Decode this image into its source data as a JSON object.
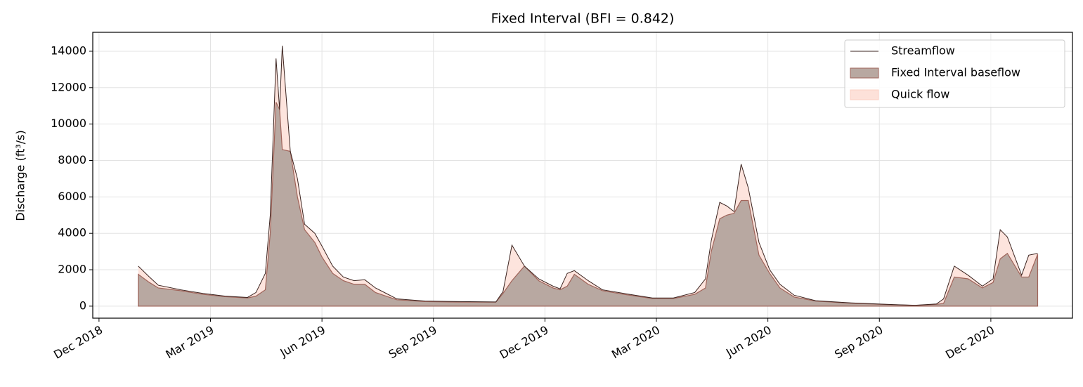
{
  "chart_data": {
    "type": "area",
    "title": "Fixed Interval (BFI = 0.842)",
    "y_label": "Discharge (ft³/s)",
    "x": [
      2019.005,
      2019.03,
      2019.05,
      2019.1,
      2019.15,
      2019.2,
      2019.25,
      2019.269,
      2019.29,
      2019.301,
      2019.314,
      2019.322,
      2019.328,
      2019.346,
      2019.362,
      2019.378,
      2019.401,
      2019.417,
      2019.441,
      2019.465,
      2019.489,
      2019.513,
      2019.537,
      2019.561,
      2019.585,
      2019.648,
      2019.728,
      2019.807,
      2019.823,
      2019.843,
      2019.871,
      2019.903,
      2019.935,
      2019.951,
      2019.967,
      2019.983,
      2020.014,
      2020.046,
      2020.094,
      2020.158,
      2020.205,
      2020.253,
      2020.277,
      2020.29,
      2020.309,
      2020.325,
      2020.341,
      2020.357,
      2020.373,
      2020.397,
      2020.421,
      2020.444,
      2020.476,
      2020.524,
      2020.604,
      2020.683,
      2020.747,
      2020.795,
      2020.811,
      2020.835,
      2020.866,
      2020.898,
      2020.922,
      2020.938,
      2020.954,
      2020.986,
      2021.002,
      2021.022
    ],
    "series": [
      {
        "name": "Streamflow",
        "color": "#3b2420",
        "values": [
          2200,
          1600,
          1150,
          900,
          700,
          550,
          480,
          750,
          1800,
          5000,
          13600,
          10800,
          14300,
          8500,
          7000,
          4500,
          4000,
          3300,
          2200,
          1600,
          1400,
          1450,
          1000,
          700,
          400,
          280,
          250,
          230,
          800,
          3350,
          2200,
          1500,
          1100,
          950,
          1800,
          1950,
          1400,
          900,
          700,
          450,
          450,
          750,
          1500,
          3600,
          5700,
          5500,
          5200,
          7800,
          6500,
          3500,
          2000,
          1200,
          600,
          300,
          180,
          100,
          50,
          120,
          400,
          2200,
          1700,
          1100,
          1500,
          4200,
          3800,
          1700,
          2800,
          2900
        ]
      },
      {
        "name": "Fixed Interval baseflow",
        "color": "#b8a8a1",
        "values": [
          1750,
          1300,
          1000,
          850,
          650,
          520,
          450,
          550,
          900,
          4000,
          11200,
          10800,
          8600,
          8500,
          6000,
          4200,
          3500,
          2700,
          1800,
          1400,
          1200,
          1200,
          750,
          550,
          350,
          250,
          220,
          220,
          700,
          1400,
          2200,
          1400,
          1000,
          900,
          1100,
          1750,
          1200,
          850,
          650,
          420,
          420,
          650,
          1000,
          3000,
          4800,
          5000,
          5100,
          5800,
          5800,
          2800,
          1800,
          1000,
          500,
          280,
          160,
          90,
          40,
          100,
          150,
          1600,
          1500,
          1000,
          1300,
          2600,
          2900,
          1600,
          1600,
          2850
        ]
      },
      {
        "name": "Quick flow",
        "color": "#fde1d9",
        "values": [
          450,
          300,
          150,
          50,
          50,
          30,
          30,
          200,
          900,
          1000,
          2400,
          0,
          5700,
          0,
          1000,
          300,
          500,
          600,
          400,
          200,
          200,
          250,
          250,
          150,
          50,
          30,
          30,
          10,
          100,
          1950,
          0,
          100,
          100,
          50,
          700,
          200,
          200,
          50,
          50,
          30,
          30,
          100,
          500,
          600,
          900,
          500,
          100,
          2000,
          700,
          700,
          200,
          200,
          100,
          20,
          20,
          10,
          10,
          20,
          250,
          600,
          200,
          100,
          200,
          1600,
          900,
          100,
          1200,
          50
        ]
      }
    ],
    "xlim": [
      2018.903,
      2021.1
    ],
    "xticks": [
      {
        "value": 2018.917,
        "label": "Dec 2018"
      },
      {
        "value": 2019.167,
        "label": "Mar 2019"
      },
      {
        "value": 2019.417,
        "label": "Jun 2019"
      },
      {
        "value": 2019.667,
        "label": "Sep 2019"
      },
      {
        "value": 2019.917,
        "label": "Dec 2019"
      },
      {
        "value": 2020.167,
        "label": "Mar 2020"
      },
      {
        "value": 2020.417,
        "label": "Jun 2020"
      },
      {
        "value": 2020.667,
        "label": "Sep 2020"
      },
      {
        "value": 2020.917,
        "label": "Dec 2020"
      }
    ],
    "ylim": [
      -660,
      15040
    ],
    "yticks": [
      0,
      2000,
      4000,
      6000,
      8000,
      10000,
      12000,
      14000
    ],
    "grid": true,
    "legend": "upper right"
  }
}
